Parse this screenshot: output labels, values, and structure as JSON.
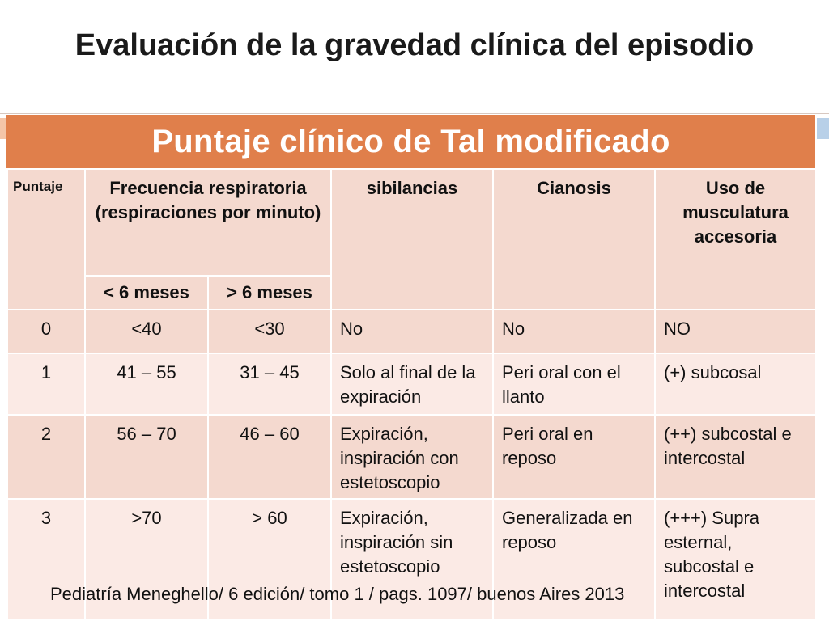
{
  "slide": {
    "title": "Evaluación de la gravedad clínica del episodio"
  },
  "table": {
    "caption": "Puntaje clínico de Tal modificado",
    "headers": {
      "puntaje": "Puntaje",
      "frecuencia": "Frecuencia respiratoria (respiraciones por minuto)",
      "sub_menor": "< 6 meses",
      "sub_mayor": "> 6 meses",
      "sibilancias": "sibilancias",
      "cianosis": "Cianosis",
      "musculatura": "Uso de musculatura accesoria"
    },
    "rows": [
      {
        "puntaje": "0",
        "menor": "<40",
        "mayor": "<30",
        "sibilancias": "No",
        "cianosis": "No",
        "musculatura": "NO"
      },
      {
        "puntaje": "1",
        "menor": "41 – 55",
        "mayor": "31 – 45",
        "sibilancias": "Solo al final de la expiración",
        "cianosis": "Peri oral con el llanto",
        "musculatura": "(+) subcosal"
      },
      {
        "puntaje": "2",
        "menor": "56 – 70",
        "mayor": "46 – 60",
        "sibilancias": "Expiración, inspiración con estetoscopio",
        "cianosis": "Peri oral en reposo",
        "musculatura": "(++) subcostal e intercostal"
      },
      {
        "puntaje": "3",
        "menor": ">70",
        "mayor": "> 60",
        "sibilancias": "Expiración, inspiración sin estetoscopio",
        "cianosis": "Generalizada en reposo",
        "musculatura": "(+++) Supra esternal, subcostal e intercostal"
      }
    ]
  },
  "footer": {
    "citation": "Pediatría Meneghello/ 6 edición/  tomo 1 / pags. 1097/ buenos Aires 2013"
  },
  "colors": {
    "header_orange": "#e07f4b",
    "row_dark": "#f4d9cf",
    "row_light": "#fbeae5"
  }
}
